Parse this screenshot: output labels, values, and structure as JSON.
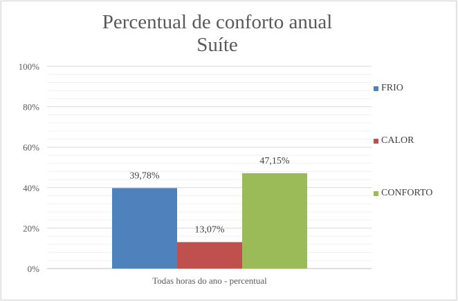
{
  "chart_data": {
    "type": "bar",
    "title": "Percentual de conforto anual",
    "subtitle": "Suíte",
    "categories": [
      "Todas horas do ano - percentual"
    ],
    "series": [
      {
        "name": "FRIO",
        "values": [
          39.78
        ],
        "label": "39,78%",
        "color": "#4f81bd"
      },
      {
        "name": "CALOR",
        "values": [
          13.07
        ],
        "label": "13,07%",
        "color": "#c0504d"
      },
      {
        "name": "CONFORTO",
        "values": [
          47.15
        ],
        "label": "47,15%",
        "color": "#9bbb59"
      }
    ],
    "yticks": [
      "0%",
      "20%",
      "40%",
      "60%",
      "80%",
      "100%"
    ],
    "ylim": [
      0,
      100
    ],
    "grid": true,
    "legend": "right"
  }
}
